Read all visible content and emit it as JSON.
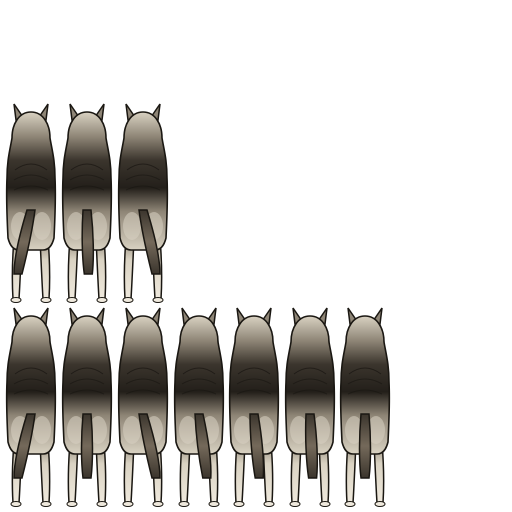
{
  "sprite_sheet": {
    "background": "#ffffff",
    "subject": "wolf-rear-view",
    "palette": {
      "outline": "#1a1712",
      "fur_light": "#d9d2c2",
      "fur_mid": "#8e8576",
      "fur_dark": "#3b352d",
      "saddle": "#231f1a",
      "tail_mid": "#74695a",
      "leg_light": "#efe9dd"
    },
    "rows": [
      {
        "row": 1,
        "frame_count": 3,
        "tail_sway": [
          -1.0,
          0.1,
          1.0
        ]
      },
      {
        "row": 2,
        "frame_count": 7,
        "tail_sway": [
          -1.0,
          0.0,
          1.0,
          0.6,
          0.4,
          0.2,
          0.0
        ]
      }
    ]
  }
}
